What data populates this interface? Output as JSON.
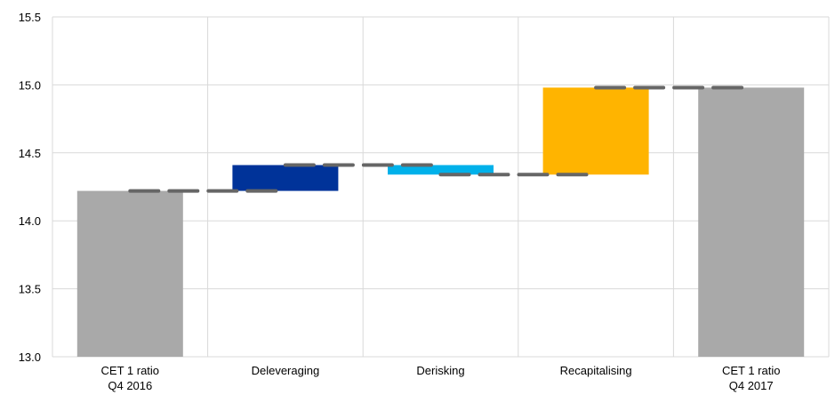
{
  "chart_data": {
    "type": "bar",
    "subtype": "waterfall",
    "categories": [
      [
        "CET 1 ratio",
        "Q4 2016"
      ],
      [
        "Deleveraging"
      ],
      [
        "Derisking"
      ],
      [
        "Recapitalising"
      ],
      [
        "CET 1 ratio",
        "Q4 2017"
      ]
    ],
    "bars": [
      {
        "kind": "total",
        "start": 13.0,
        "end": 14.22
      },
      {
        "kind": "increase",
        "start": 14.22,
        "end": 14.41
      },
      {
        "kind": "decrease",
        "start": 14.41,
        "end": 14.34
      },
      {
        "kind": "increase",
        "start": 14.34,
        "end": 14.98
      },
      {
        "kind": "total",
        "start": 13.0,
        "end": 14.98
      }
    ],
    "connector_levels": [
      14.22,
      14.41,
      14.34,
      14.98
    ],
    "ylim": [
      13.0,
      15.5
    ],
    "yticks": [
      "13.0",
      "13.5",
      "14.0",
      "14.5",
      "15.0",
      "15.5"
    ],
    "ytick_values": [
      13.0,
      13.5,
      14.0,
      14.5,
      15.0,
      15.5
    ],
    "grid": true,
    "colors": {
      "total": "#a9a9a9",
      "deleveraging": "#003399",
      "derisking": "#00b1ea",
      "recapitalising": "#ffb400",
      "connector": "#666666",
      "grid": "#d9d9d9"
    },
    "bar_colors": [
      "#a9a9a9",
      "#003399",
      "#00b1ea",
      "#ffb400",
      "#a9a9a9"
    ]
  }
}
